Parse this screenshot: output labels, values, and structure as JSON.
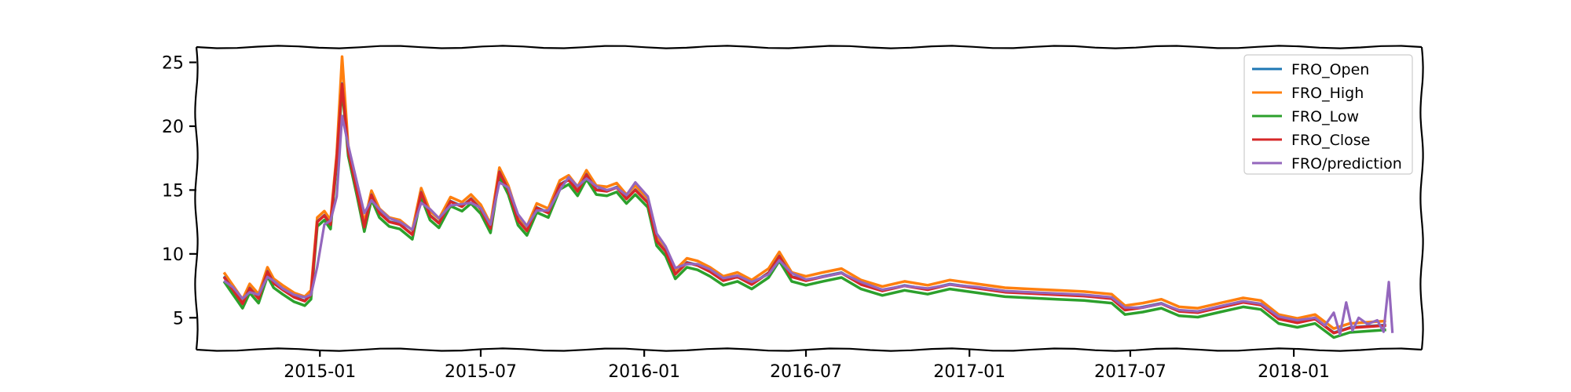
{
  "chart_data": {
    "type": "line",
    "title": "",
    "xlabel": "",
    "ylabel": "",
    "x_range": [
      "2014-08-15",
      "2018-05-25"
    ],
    "ylim": [
      2.5,
      26.2
    ],
    "grid": false,
    "legend_position": "top-right",
    "x_ticks": [
      {
        "date": "2015-01-01",
        "label": "2015-01"
      },
      {
        "date": "2015-07-01",
        "label": "2015-07"
      },
      {
        "date": "2016-01-01",
        "label": "2016-01"
      },
      {
        "date": "2016-07-01",
        "label": "2016-07"
      },
      {
        "date": "2017-01-01",
        "label": "2017-01"
      },
      {
        "date": "2017-07-01",
        "label": "2017-07"
      },
      {
        "date": "2018-01-01",
        "label": "2018-01"
      }
    ],
    "y_ticks": [
      5,
      10,
      15,
      20,
      25
    ],
    "series": [
      {
        "name": "FRO_Open",
        "color": "#1f77b4"
      },
      {
        "name": "FRO_High",
        "color": "#ff7f0e"
      },
      {
        "name": "FRO_Low",
        "color": "#2ca02c"
      },
      {
        "name": "FRO_Close",
        "color": "#d62728"
      },
      {
        "name": "FRO/prediction",
        "color": "#9467bd"
      }
    ],
    "close_points": [
      [
        "2014-09-15",
        8.2
      ],
      [
        "2014-09-25",
        7.2
      ],
      [
        "2014-10-06",
        6.1
      ],
      [
        "2014-10-14",
        7.3
      ],
      [
        "2014-10-24",
        6.5
      ],
      [
        "2014-11-03",
        8.6
      ],
      [
        "2014-11-10",
        7.7
      ],
      [
        "2014-11-20",
        7.2
      ],
      [
        "2014-12-03",
        6.6
      ],
      [
        "2014-12-15",
        6.3
      ],
      [
        "2014-12-22",
        6.8
      ],
      [
        "2014-12-29",
        12.5
      ],
      [
        "2015-01-06",
        13.0
      ],
      [
        "2015-01-13",
        12.3
      ],
      [
        "2015-01-20",
        17.5
      ],
      [
        "2015-01-26",
        23.3
      ],
      [
        "2015-02-02",
        18.0
      ],
      [
        "2015-02-12",
        14.8
      ],
      [
        "2015-02-20",
        12.1
      ],
      [
        "2015-02-28",
        14.6
      ],
      [
        "2015-03-09",
        13.2
      ],
      [
        "2015-03-20",
        12.5
      ],
      [
        "2015-04-01",
        12.3
      ],
      [
        "2015-04-15",
        11.5
      ],
      [
        "2015-04-25",
        14.8
      ],
      [
        "2015-05-05",
        13.0
      ],
      [
        "2015-05-15",
        12.4
      ],
      [
        "2015-05-28",
        14.1
      ],
      [
        "2015-06-10",
        13.7
      ],
      [
        "2015-06-20",
        14.3
      ],
      [
        "2015-07-01",
        13.5
      ],
      [
        "2015-07-12",
        12.0
      ],
      [
        "2015-07-22",
        16.4
      ],
      [
        "2015-08-01",
        15.0
      ],
      [
        "2015-08-12",
        12.6
      ],
      [
        "2015-08-22",
        11.8
      ],
      [
        "2015-09-02",
        13.6
      ],
      [
        "2015-09-15",
        13.2
      ],
      [
        "2015-09-28",
        15.4
      ],
      [
        "2015-10-08",
        15.8
      ],
      [
        "2015-10-18",
        14.9
      ],
      [
        "2015-10-28",
        16.2
      ],
      [
        "2015-11-08",
        15.0
      ],
      [
        "2015-11-20",
        14.9
      ],
      [
        "2015-12-01",
        15.2
      ],
      [
        "2015-12-12",
        14.3
      ],
      [
        "2015-12-22",
        15.0
      ],
      [
        "2016-01-05",
        14.0
      ],
      [
        "2016-01-15",
        11.0
      ],
      [
        "2016-01-25",
        10.2
      ],
      [
        "2016-02-05",
        8.4
      ],
      [
        "2016-02-18",
        9.3
      ],
      [
        "2016-03-01",
        9.1
      ],
      [
        "2016-03-15",
        8.6
      ],
      [
        "2016-03-30",
        7.9
      ],
      [
        "2016-04-15",
        8.2
      ],
      [
        "2016-05-01",
        7.6
      ],
      [
        "2016-05-20",
        8.5
      ],
      [
        "2016-06-01",
        9.8
      ],
      [
        "2016-06-15",
        8.2
      ],
      [
        "2016-07-01",
        7.9
      ],
      [
        "2016-07-20",
        8.2
      ],
      [
        "2016-08-10",
        8.5
      ],
      [
        "2016-09-01",
        7.6
      ],
      [
        "2016-09-25",
        7.1
      ],
      [
        "2016-10-20",
        7.5
      ],
      [
        "2016-11-15",
        7.2
      ],
      [
        "2016-12-10",
        7.6
      ],
      [
        "2017-01-10",
        7.3
      ],
      [
        "2017-02-10",
        7.0
      ],
      [
        "2017-03-10",
        6.9
      ],
      [
        "2017-04-10",
        6.8
      ],
      [
        "2017-05-10",
        6.7
      ],
      [
        "2017-06-10",
        6.5
      ],
      [
        "2017-06-25",
        5.6
      ],
      [
        "2017-07-15",
        5.8
      ],
      [
        "2017-08-05",
        6.1
      ],
      [
        "2017-08-25",
        5.5
      ],
      [
        "2017-09-15",
        5.4
      ],
      [
        "2017-10-10",
        5.8
      ],
      [
        "2017-11-05",
        6.2
      ],
      [
        "2017-11-25",
        6.0
      ],
      [
        "2017-12-15",
        4.9
      ],
      [
        "2018-01-05",
        4.6
      ],
      [
        "2018-01-25",
        4.9
      ],
      [
        "2018-02-15",
        3.8
      ],
      [
        "2018-03-05",
        4.2
      ],
      [
        "2018-03-25",
        4.3
      ],
      [
        "2018-04-15",
        4.4
      ]
    ],
    "prediction_points": [
      [
        "2014-09-15",
        7.9
      ],
      [
        "2014-09-25",
        7.4
      ],
      [
        "2014-10-06",
        6.5
      ],
      [
        "2014-10-14",
        7.0
      ],
      [
        "2014-10-24",
        6.8
      ],
      [
        "2014-11-03",
        8.2
      ],
      [
        "2014-11-10",
        7.9
      ],
      [
        "2014-11-20",
        7.3
      ],
      [
        "2014-12-03",
        6.8
      ],
      [
        "2014-12-15",
        6.6
      ],
      [
        "2014-12-22",
        6.8
      ],
      [
        "2014-12-29",
        9.0
      ],
      [
        "2015-01-06",
        12.3
      ],
      [
        "2015-01-13",
        12.6
      ],
      [
        "2015-01-20",
        14.5
      ],
      [
        "2015-01-26",
        20.8
      ],
      [
        "2015-02-02",
        18.5
      ],
      [
        "2015-02-12",
        15.5
      ],
      [
        "2015-02-20",
        13.2
      ],
      [
        "2015-02-28",
        14.2
      ],
      [
        "2015-03-09",
        13.5
      ],
      [
        "2015-03-20",
        12.8
      ],
      [
        "2015-04-01",
        12.5
      ],
      [
        "2015-04-15",
        11.9
      ],
      [
        "2015-04-25",
        14.0
      ],
      [
        "2015-05-05",
        13.5
      ],
      [
        "2015-05-15",
        12.8
      ],
      [
        "2015-05-28",
        13.8
      ],
      [
        "2015-06-10",
        13.9
      ],
      [
        "2015-06-20",
        14.0
      ],
      [
        "2015-07-01",
        13.6
      ],
      [
        "2015-07-12",
        12.3
      ],
      [
        "2015-07-22",
        15.6
      ],
      [
        "2015-08-01",
        15.2
      ],
      [
        "2015-08-12",
        13.1
      ],
      [
        "2015-08-22",
        12.2
      ],
      [
        "2015-09-02",
        13.4
      ],
      [
        "2015-09-15",
        13.4
      ],
      [
        "2015-09-28",
        15.0
      ],
      [
        "2015-10-08",
        16.0
      ],
      [
        "2015-10-18",
        15.3
      ],
      [
        "2015-10-28",
        15.9
      ],
      [
        "2015-11-08",
        15.3
      ],
      [
        "2015-11-20",
        15.0
      ],
      [
        "2015-12-01",
        15.2
      ],
      [
        "2015-12-12",
        14.6
      ],
      [
        "2015-12-22",
        15.6
      ],
      [
        "2016-01-05",
        14.5
      ],
      [
        "2016-01-15",
        11.6
      ],
      [
        "2016-01-25",
        10.6
      ],
      [
        "2016-02-05",
        8.9
      ],
      [
        "2016-02-18",
        9.2
      ],
      [
        "2016-03-01",
        9.2
      ],
      [
        "2016-03-15",
        8.8
      ],
      [
        "2016-03-30",
        8.1
      ],
      [
        "2016-04-15",
        8.3
      ],
      [
        "2016-05-01",
        7.8
      ],
      [
        "2016-05-20",
        8.4
      ],
      [
        "2016-06-01",
        9.5
      ],
      [
        "2016-06-15",
        8.5
      ],
      [
        "2016-07-01",
        8.0
      ],
      [
        "2016-07-20",
        8.2
      ],
      [
        "2016-08-10",
        8.5
      ],
      [
        "2016-09-01",
        7.8
      ],
      [
        "2016-09-25",
        7.2
      ],
      [
        "2016-10-20",
        7.5
      ],
      [
        "2016-11-15",
        7.3
      ],
      [
        "2016-12-10",
        7.6
      ],
      [
        "2017-01-10",
        7.4
      ],
      [
        "2017-02-10",
        7.1
      ],
      [
        "2017-03-10",
        7.0
      ],
      [
        "2017-04-10",
        6.9
      ],
      [
        "2017-05-10",
        6.8
      ],
      [
        "2017-06-10",
        6.6
      ],
      [
        "2017-06-25",
        5.8
      ],
      [
        "2017-07-15",
        5.8
      ],
      [
        "2017-08-05",
        6.1
      ],
      [
        "2017-08-25",
        5.6
      ],
      [
        "2017-09-15",
        5.5
      ],
      [
        "2017-10-10",
        5.9
      ],
      [
        "2017-11-05",
        6.3
      ],
      [
        "2017-11-25",
        6.1
      ],
      [
        "2017-12-15",
        5.1
      ],
      [
        "2018-01-05",
        4.8
      ],
      [
        "2018-01-25",
        5.0
      ],
      [
        "2018-02-05",
        4.4
      ],
      [
        "2018-02-15",
        5.4
      ],
      [
        "2018-02-22",
        3.7
      ],
      [
        "2018-03-01",
        6.2
      ],
      [
        "2018-03-08",
        4.0
      ],
      [
        "2018-03-15",
        5.0
      ],
      [
        "2018-03-25",
        4.5
      ],
      [
        "2018-04-05",
        4.8
      ],
      [
        "2018-04-12",
        3.9
      ],
      [
        "2018-04-18",
        7.8
      ],
      [
        "2018-04-22",
        3.8
      ]
    ],
    "high_offset": 0.35,
    "low_offset": -0.35
  }
}
